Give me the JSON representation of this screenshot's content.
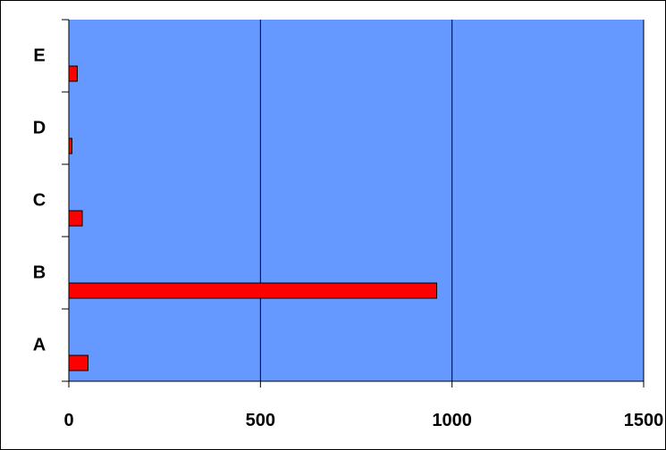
{
  "chart_data": {
    "type": "bar",
    "orientation": "horizontal",
    "categories": [
      "A",
      "B",
      "C",
      "D",
      "E"
    ],
    "values": [
      50,
      960,
      35,
      8,
      22
    ],
    "title": "",
    "xlabel": "",
    "ylabel": "",
    "xlim": [
      0,
      1500
    ],
    "x_ticks": [
      0,
      500,
      1000,
      1500
    ],
    "x_tick_labels": [
      "0",
      "500",
      "1000",
      "1500"
    ],
    "grid": "vertical",
    "legend": "none"
  },
  "colors": {
    "plot_background": "#6699ff",
    "bar_fill": "#ff0000",
    "bar_stroke": "#000000",
    "gridline": "#000000",
    "axis": "#000000"
  }
}
